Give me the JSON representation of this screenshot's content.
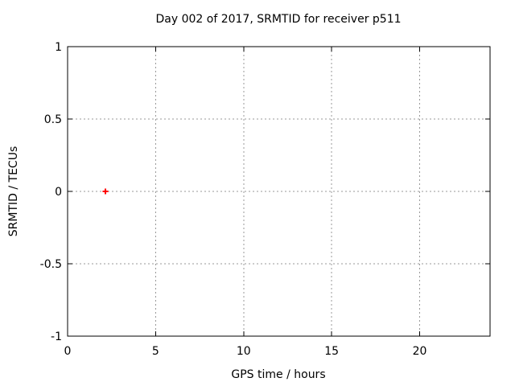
{
  "window": {
    "background_color": "#ffffff"
  },
  "chart_data": {
    "type": "scatter",
    "title": "Day 002 of 2017, SRMTID for receiver p511",
    "xlabel": "GPS time / hours",
    "ylabel": "SRMTID / TECUs",
    "xlim": [
      0,
      24
    ],
    "ylim": [
      -1,
      1
    ],
    "xticks": [
      0,
      5,
      10,
      15,
      20
    ],
    "yticks": [
      -1,
      -0.5,
      0,
      0.5,
      1
    ],
    "grid": true,
    "grid_style": "dotted",
    "legend": "none",
    "series": [
      {
        "name": "SRMTID",
        "marker": "plus",
        "color": "#ff0000",
        "points": [
          {
            "x": 2.15,
            "y": 0.0
          }
        ]
      }
    ],
    "colors": {
      "background": "#ffffff",
      "border": "#000000",
      "grid": "#999999",
      "text": "#000000",
      "marker": "#ff0000"
    }
  }
}
